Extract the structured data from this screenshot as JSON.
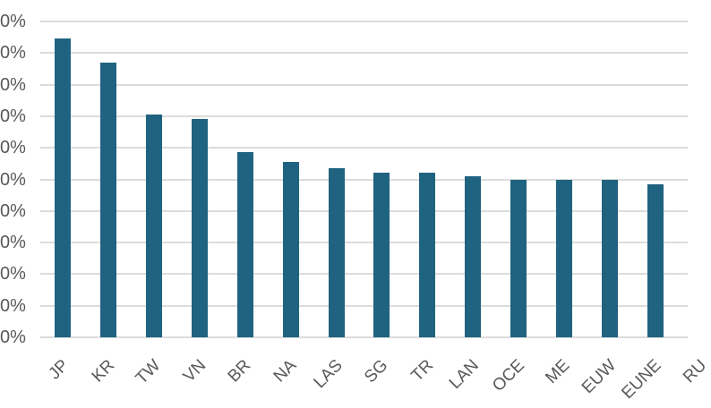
{
  "chart_data": {
    "type": "bar",
    "title": "",
    "xlabel": "",
    "ylabel": "",
    "categories": [
      "JP",
      "KR",
      "TW",
      "VN",
      "BR",
      "NA",
      "LAS",
      "SG",
      "TR",
      "LAN",
      "OCE",
      "ME",
      "EUW",
      "EUNE",
      "RU"
    ],
    "values": [
      94.5,
      87,
      70.5,
      69,
      58.5,
      55.5,
      53.5,
      52,
      52,
      51,
      50,
      50,
      50,
      48.5,
      null
    ],
    "ylim": [
      0,
      100
    ],
    "ytick_step": 10,
    "ytick_labels_visible": [
      "0%",
      "0%",
      "0%",
      "0%",
      "0%",
      "0%",
      "0%",
      "0%",
      "0%",
      "0%",
      "0%"
    ],
    "grid": true,
    "legend": false,
    "colors": {
      "bar": "#1f6380",
      "gridline": "#dcdcdc",
      "label": "#595959",
      "background": "#ffffff"
    }
  }
}
